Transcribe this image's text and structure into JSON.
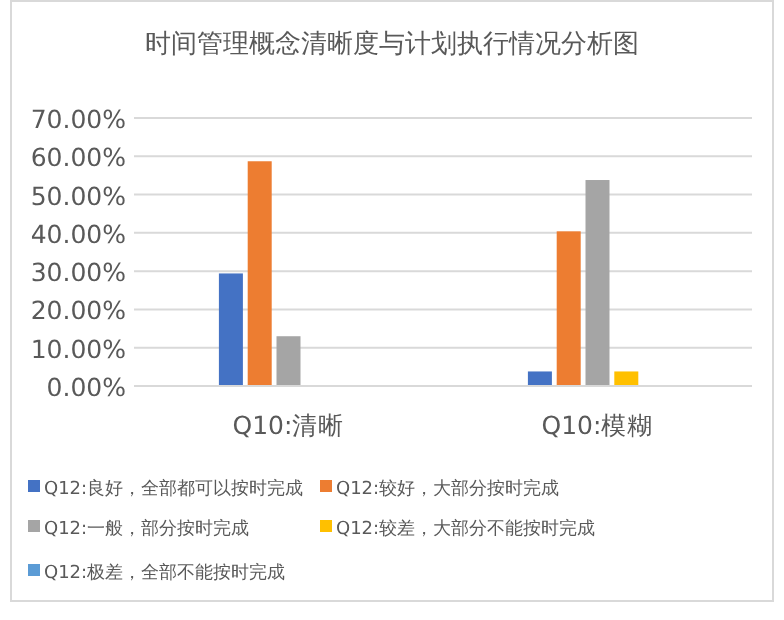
{
  "chart_data": {
    "type": "bar",
    "title": "时间管理概念清晰度与计划执行情况分析图",
    "categories": [
      "Q10:清晰",
      "Q10:模糊"
    ],
    "series": [
      {
        "name": "Q12:良好，全部都可以按时完成",
        "color": "#4472c4",
        "values": [
          29.4,
          3.8
        ]
      },
      {
        "name": "Q12:较好，大部分按时完成",
        "color": "#ed7d31",
        "values": [
          58.7,
          40.4
        ]
      },
      {
        "name": "Q12:一般，部分按时完成",
        "color": "#a5a5a5",
        "values": [
          13.0,
          53.8
        ]
      },
      {
        "name": "Q12:较差，大部分不能按时完成",
        "color": "#ffc000",
        "values": [
          0,
          3.8
        ]
      },
      {
        "name": "Q12:极差，全部不能按时完成",
        "color": "#5b9bd5",
        "values": [
          0,
          0
        ]
      }
    ],
    "ylim": [
      0,
      70
    ],
    "yticks": [
      {
        "value": 0,
        "label": "0.00%"
      },
      {
        "value": 10,
        "label": "10.00%"
      },
      {
        "value": 20,
        "label": "20.00%"
      },
      {
        "value": 30,
        "label": "30.00%"
      },
      {
        "value": 40,
        "label": "40.00%"
      },
      {
        "value": 50,
        "label": "50.00%"
      },
      {
        "value": 60,
        "label": "60.00%"
      },
      {
        "value": 70,
        "label": "70.00%"
      }
    ],
    "grid": "y",
    "legend": "bottom"
  }
}
